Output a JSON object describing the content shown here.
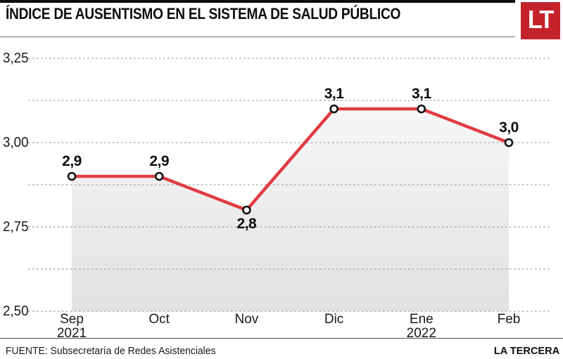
{
  "header": {
    "title": "ÍNDICE DE AUSENTISMO EN EL SISTEMA DE SALUD PÚBLICO",
    "logo_text": "LT",
    "logo_color": "#c4232b"
  },
  "chart_data": {
    "type": "line",
    "title": "ÍNDICE DE AUSENTISMO EN EL SISTEMA DE SALUD PÚBLICO",
    "categories": [
      "Sep 2021",
      "Oct",
      "Nov",
      "Dic",
      "Ene 2022",
      "Feb"
    ],
    "x_ticks": [
      {
        "month": "Sep",
        "year": "2021"
      },
      {
        "month": "Oct",
        "year": ""
      },
      {
        "month": "Nov",
        "year": ""
      },
      {
        "month": "Dic",
        "year": ""
      },
      {
        "month": "Ene",
        "year": "2022"
      },
      {
        "month": "Feb",
        "year": ""
      }
    ],
    "values": [
      2.9,
      2.9,
      2.8,
      3.1,
      3.1,
      3.0
    ],
    "point_labels": [
      "2,9",
      "2,9",
      "2,8",
      "3,1",
      "3,1",
      "3,0"
    ],
    "point_label_positions": [
      "above",
      "above",
      "below",
      "above",
      "above",
      "above"
    ],
    "ylim": [
      2.5,
      3.25
    ],
    "yticks": [
      {
        "value": 3.25,
        "label": "3,25"
      },
      {
        "value": 3.0,
        "label": "3,00"
      },
      {
        "value": 2.75,
        "label": "2,75"
      },
      {
        "value": 2.5,
        "label": "2,50"
      }
    ],
    "grid_step": 0.125,
    "grid_style": "dotted horizontal lines",
    "legend": "none",
    "line_color": "#e13b41",
    "marker_style": "white circle with black ring",
    "grid_color": "#9e9e9e",
    "area_fill_top": "#f7f7f7",
    "area_fill_bottom": "#e1e1e1"
  },
  "footer": {
    "source": "FUENTE: Subsecretaría de Redes Asistenciales",
    "credit": "LA TERCERA"
  }
}
